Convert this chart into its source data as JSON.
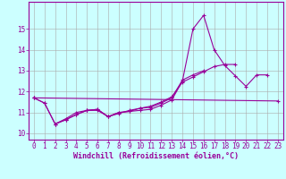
{
  "x": [
    0,
    1,
    2,
    3,
    4,
    5,
    6,
    7,
    8,
    9,
    10,
    11,
    12,
    13,
    14,
    15,
    16,
    17,
    18,
    19,
    20,
    21,
    22,
    23
  ],
  "line1": [
    11.7,
    11.45,
    10.45,
    10.65,
    10.9,
    11.1,
    11.15,
    10.8,
    11.0,
    11.05,
    11.1,
    11.15,
    11.35,
    11.6,
    12.5,
    15.0,
    15.65,
    14.0,
    13.25,
    12.75,
    12.25,
    12.8,
    12.8,
    null
  ],
  "line2": [
    11.7,
    11.45,
    10.45,
    10.65,
    10.9,
    11.1,
    11.15,
    10.8,
    11.0,
    11.05,
    11.2,
    11.3,
    11.5,
    11.75,
    12.45,
    12.7,
    12.95,
    13.2,
    13.3,
    13.3,
    null,
    null,
    null,
    null
  ],
  "line3": [
    11.7,
    null,
    null,
    null,
    null,
    null,
    null,
    null,
    null,
    null,
    null,
    null,
    null,
    null,
    null,
    null,
    null,
    null,
    null,
    null,
    null,
    null,
    null,
    11.55
  ],
  "line4": [
    null,
    null,
    10.45,
    10.7,
    11.0,
    11.1,
    11.1,
    10.8,
    10.95,
    11.1,
    11.2,
    11.25,
    11.45,
    11.7,
    12.55,
    12.8,
    13.0,
    null,
    null,
    null,
    null,
    null,
    null,
    null
  ],
  "color": "#990099",
  "bg_color": "#ccffff",
  "grid_color": "#aaaaaa",
  "ylabel_values": [
    10,
    11,
    12,
    13,
    14,
    15
  ],
  "ylim": [
    9.7,
    16.3
  ],
  "xlim": [
    -0.5,
    23.5
  ],
  "xlabel": "Windchill (Refroidissement éolien,°C)",
  "xlabel_fontsize": 6,
  "tick_fontsize": 5.5,
  "marker": "+"
}
